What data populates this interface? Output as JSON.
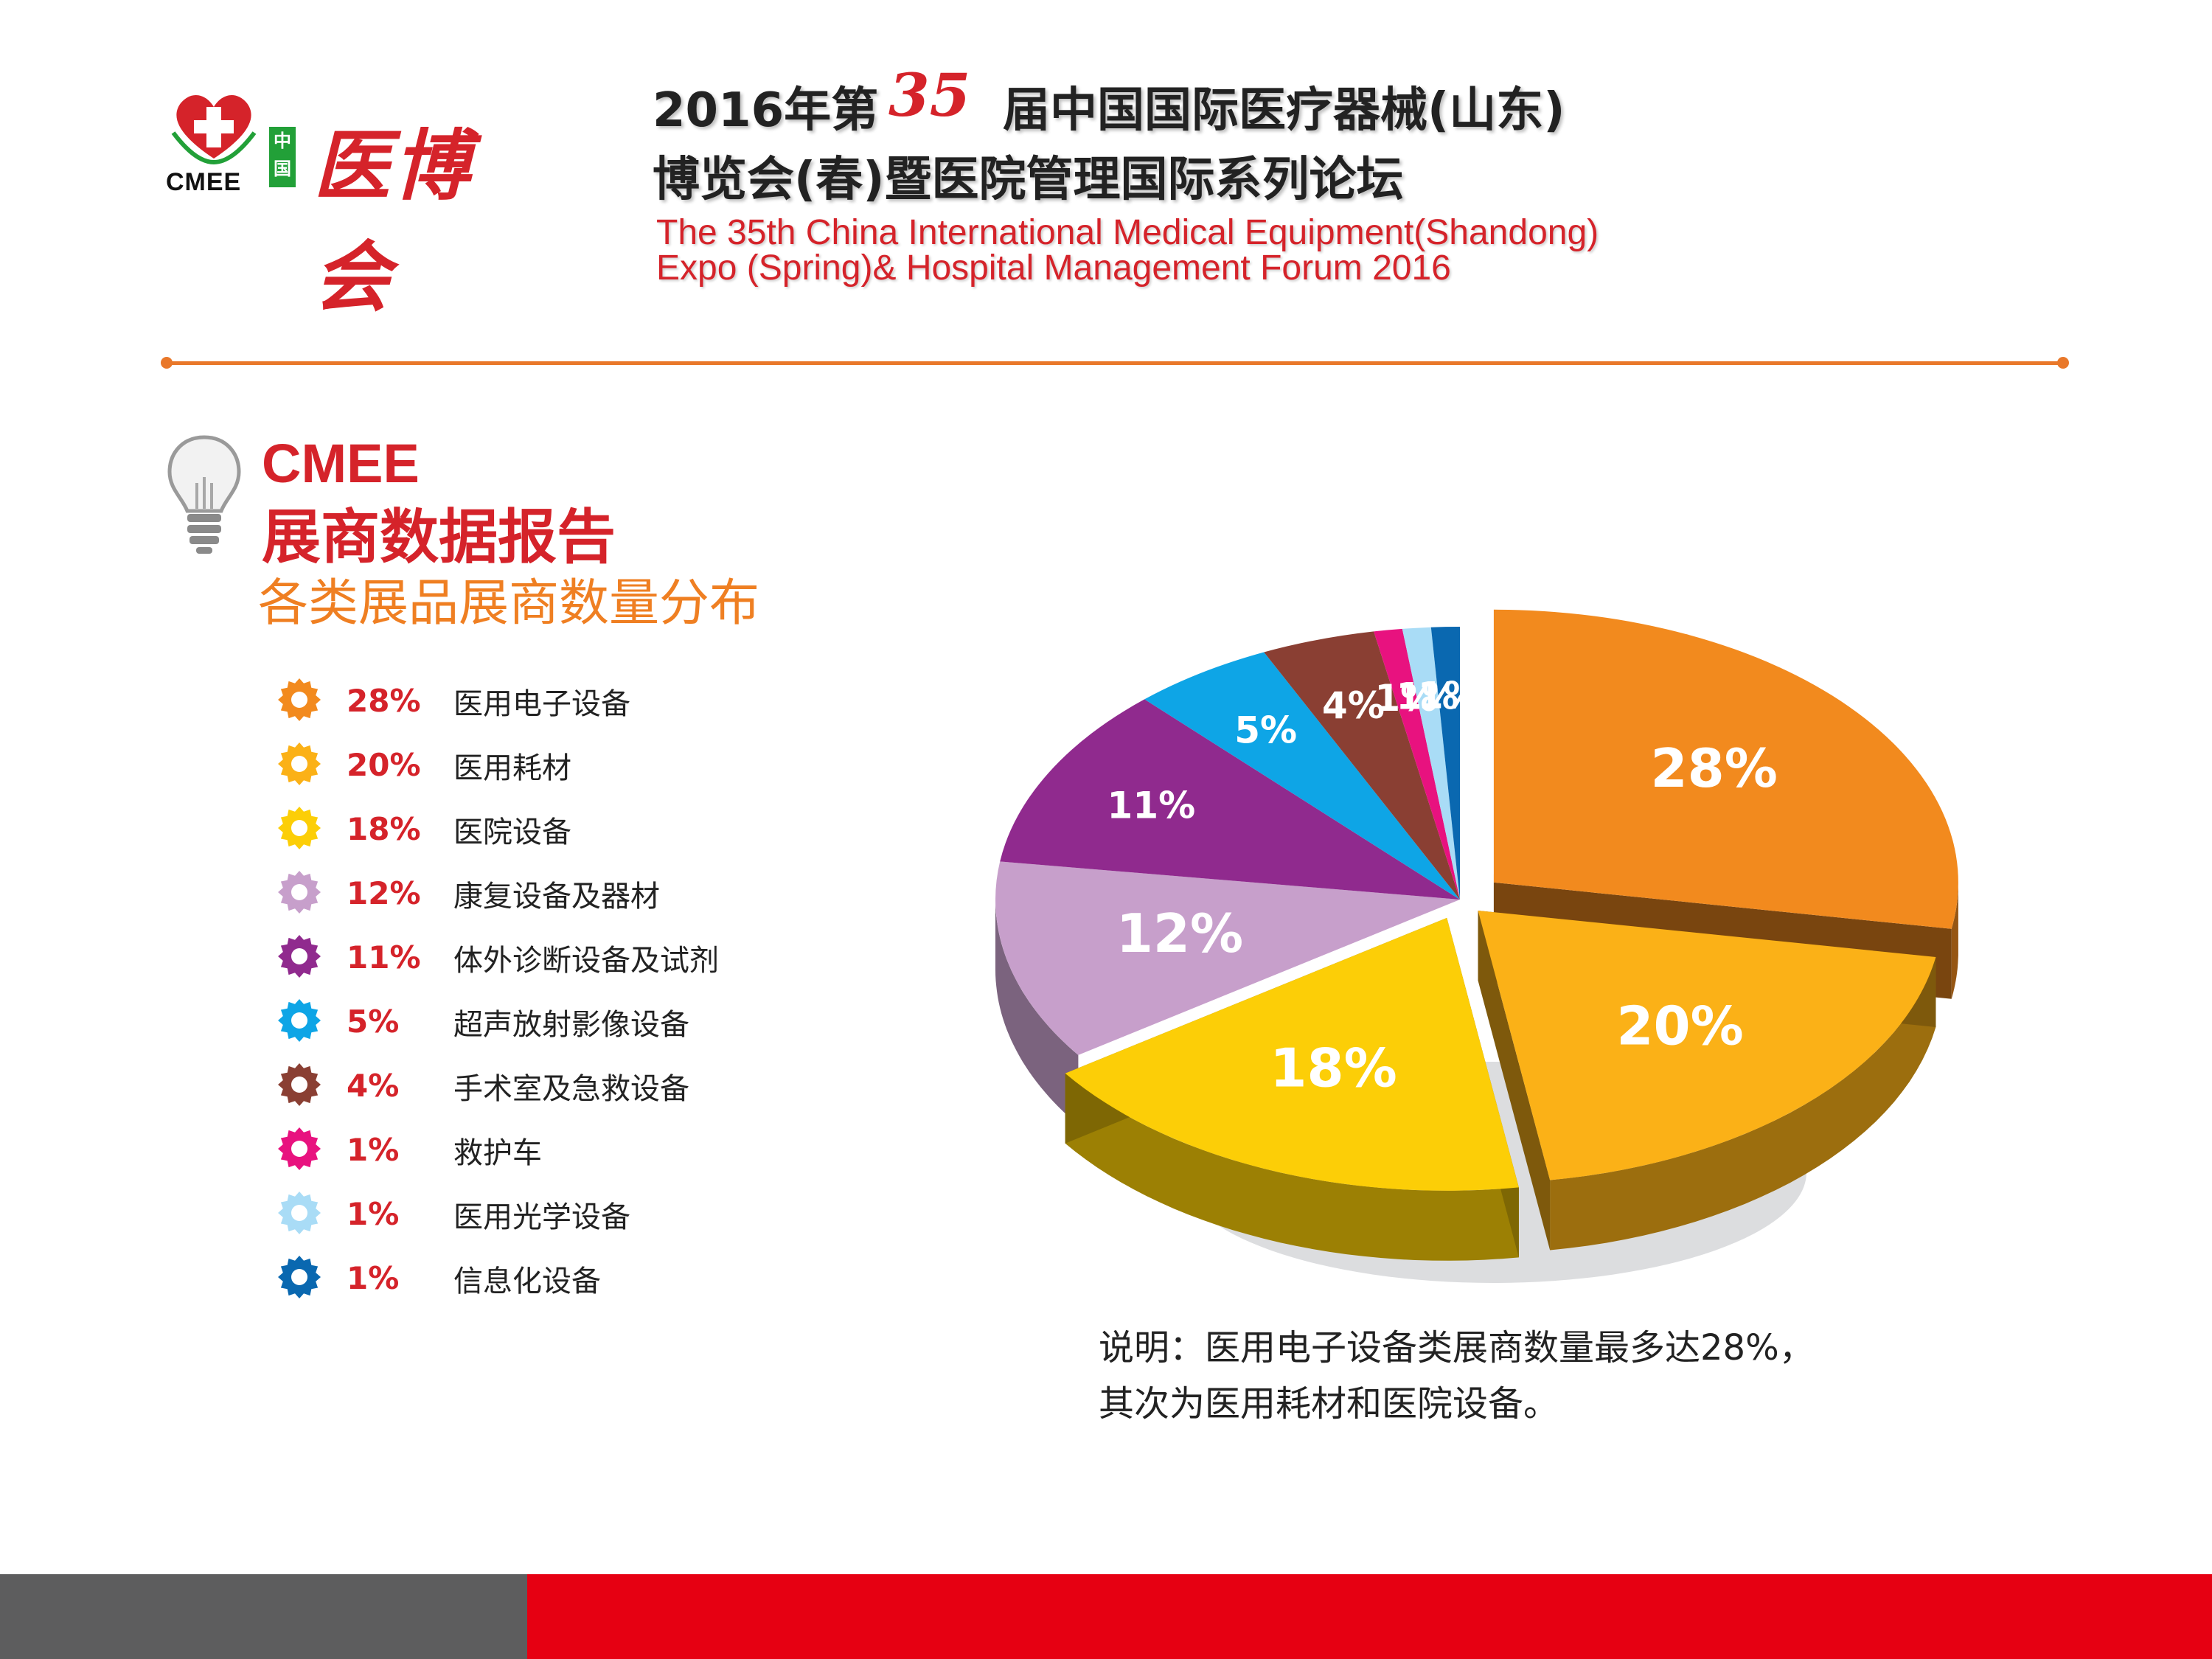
{
  "header": {
    "logo_abbr": "CMEE",
    "logo_china": "中国",
    "logo_name": "医博会",
    "title_prefix": "2016年第",
    "edition": "35",
    "title_suffix": "届中国国际医疗器械(山东)",
    "title_line2": "博览会(春)暨医院管理国际系列论坛",
    "english_line1": "The 35th China International Medical Equipment(Shandong)",
    "english_line2": "Expo (Spring)& Hospital Management Forum 2016"
  },
  "section": {
    "brand": "CMEE",
    "title": "展商数据报告",
    "subtitle": "各类展品展商数量分布"
  },
  "note": {
    "line1": "说明：医用电子设备类展商数量最多达28%，",
    "line2": "其次为医用耗材和医院设备。"
  },
  "colors": {
    "accent_red": "#d5232a",
    "accent_orange": "#ef7f22",
    "footer_gray": "#5d5d5e",
    "footer_red": "#e60012"
  },
  "chart_data": {
    "type": "pie",
    "title": "各类展品展商数量分布",
    "legend_position": "left",
    "series": [
      {
        "name": "医用电子设备",
        "value": 28,
        "label": "28%",
        "color": "#f28a1e"
      },
      {
        "name": "医用耗材",
        "value": 20,
        "label": "20%",
        "color": "#fbb117"
      },
      {
        "name": "医院设备",
        "value": 18,
        "label": "18%",
        "color": "#fcce07"
      },
      {
        "name": "康复设备及器材",
        "value": 12,
        "label": "12%",
        "color": "#c79fcb"
      },
      {
        "name": "体外诊断设备及试剂",
        "value": 11,
        "label": "11%",
        "color": "#902a8e"
      },
      {
        "name": "超声放射影像设备",
        "value": 5,
        "label": "5%",
        "color": "#0ea5e6"
      },
      {
        "name": "手术室及急救设备",
        "value": 4,
        "label": "4%",
        "color": "#8a3f33"
      },
      {
        "name": "救护车",
        "value": 1,
        "label": "1%",
        "color": "#e8127f"
      },
      {
        "name": "医用光学设备",
        "value": 1,
        "label": "1%",
        "color": "#a9dcf6"
      },
      {
        "name": "信息化设备",
        "value": 1,
        "label": "1%",
        "color": "#0a68b0"
      }
    ]
  }
}
